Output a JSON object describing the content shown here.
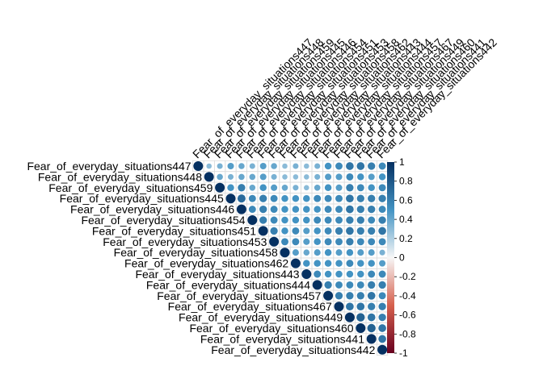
{
  "chart_data": {
    "type": "heatmap",
    "subtype": "correlation-circles-upper-triangle",
    "title": "",
    "variables": [
      "Fear_of_everyday_situations447",
      "Fear_of_everyday_situations448",
      "Fear_of_everyday_situations459",
      "Fear_of_everyday_situations445",
      "Fear_of_everyday_situations446",
      "Fear_of_everyday_situations454",
      "Fear_of_everyday_situations451",
      "Fear_of_everyday_situations453",
      "Fear_of_everyday_situations458",
      "Fear_of_everyday_situations462",
      "Fear_of_everyday_situations443",
      "Fear_of_everyday_situations444",
      "Fear_of_everyday_situations457",
      "Fear_of_everyday_situations467",
      "Fear_of_everyday_situations449",
      "Fear_of_everyday_situations460",
      "Fear_of_everyday_situations441",
      "Fear_of_everyday_situations442"
    ],
    "matrix": [
      [
        1.0,
        0.3,
        0.35,
        0.45,
        0.4,
        0.35,
        0.45,
        0.4,
        0.3,
        0.35,
        0.3,
        0.35,
        0.5,
        0.55,
        0.65,
        0.65,
        0.6,
        0.55
      ],
      [
        0.3,
        1.0,
        0.4,
        0.35,
        0.4,
        0.4,
        0.45,
        0.35,
        0.3,
        0.3,
        0.3,
        0.35,
        0.45,
        0.45,
        0.55,
        0.5,
        0.45,
        0.5
      ],
      [
        0.35,
        0.4,
        1.0,
        0.5,
        0.6,
        0.4,
        0.5,
        0.45,
        0.4,
        0.35,
        0.3,
        0.4,
        0.5,
        0.45,
        0.6,
        0.55,
        0.5,
        0.55
      ],
      [
        0.45,
        0.35,
        0.5,
        1.0,
        0.7,
        0.55,
        0.6,
        0.55,
        0.5,
        0.5,
        0.5,
        0.55,
        0.55,
        0.55,
        0.65,
        0.6,
        0.6,
        0.6
      ],
      [
        0.4,
        0.4,
        0.6,
        0.7,
        1.0,
        0.55,
        0.6,
        0.55,
        0.5,
        0.5,
        0.5,
        0.5,
        0.55,
        0.55,
        0.65,
        0.6,
        0.6,
        0.55
      ],
      [
        0.35,
        0.4,
        0.4,
        0.55,
        0.55,
        1.0,
        0.6,
        0.55,
        0.5,
        0.5,
        0.5,
        0.55,
        0.55,
        0.55,
        0.6,
        0.6,
        0.55,
        0.6
      ],
      [
        0.45,
        0.45,
        0.5,
        0.6,
        0.6,
        0.6,
        1.0,
        0.6,
        0.5,
        0.55,
        0.45,
        0.5,
        0.55,
        0.6,
        0.65,
        0.6,
        0.6,
        0.65
      ],
      [
        0.4,
        0.35,
        0.45,
        0.55,
        0.55,
        0.55,
        0.6,
        1.0,
        0.55,
        0.55,
        0.45,
        0.5,
        0.55,
        0.55,
        0.6,
        0.55,
        0.55,
        0.55
      ],
      [
        0.3,
        0.3,
        0.4,
        0.5,
        0.5,
        0.5,
        0.5,
        0.55,
        1.0,
        0.45,
        0.4,
        0.45,
        0.5,
        0.45,
        0.5,
        0.45,
        0.45,
        0.35
      ],
      [
        0.35,
        0.3,
        0.35,
        0.5,
        0.5,
        0.5,
        0.55,
        0.55,
        0.45,
        1.0,
        0.5,
        0.5,
        0.5,
        0.5,
        0.55,
        0.5,
        0.5,
        0.45
      ],
      [
        0.3,
        0.3,
        0.3,
        0.5,
        0.5,
        0.5,
        0.45,
        0.45,
        0.4,
        0.5,
        1.0,
        0.55,
        0.5,
        0.5,
        0.5,
        0.5,
        0.55,
        0.55
      ],
      [
        0.35,
        0.35,
        0.4,
        0.55,
        0.5,
        0.55,
        0.5,
        0.5,
        0.45,
        0.5,
        0.55,
        1.0,
        0.6,
        0.55,
        0.55,
        0.55,
        0.6,
        0.6
      ],
      [
        0.5,
        0.45,
        0.5,
        0.55,
        0.55,
        0.55,
        0.55,
        0.55,
        0.5,
        0.5,
        0.5,
        0.6,
        1.0,
        0.6,
        0.6,
        0.6,
        0.65,
        0.55
      ],
      [
        0.55,
        0.45,
        0.45,
        0.55,
        0.55,
        0.55,
        0.6,
        0.55,
        0.45,
        0.5,
        0.5,
        0.55,
        0.6,
        1.0,
        0.65,
        0.65,
        0.6,
        0.6
      ],
      [
        0.65,
        0.55,
        0.6,
        0.65,
        0.65,
        0.6,
        0.65,
        0.6,
        0.5,
        0.55,
        0.5,
        0.55,
        0.6,
        0.65,
        1.0,
        0.75,
        0.65,
        0.6
      ],
      [
        0.65,
        0.5,
        0.55,
        0.6,
        0.6,
        0.6,
        0.6,
        0.55,
        0.45,
        0.5,
        0.5,
        0.55,
        0.6,
        0.65,
        0.75,
        1.0,
        0.75,
        0.65
      ],
      [
        0.6,
        0.45,
        0.5,
        0.6,
        0.6,
        0.55,
        0.6,
        0.55,
        0.45,
        0.5,
        0.55,
        0.6,
        0.65,
        0.6,
        0.65,
        0.75,
        1.0,
        0.65
      ],
      [
        0.55,
        0.5,
        0.55,
        0.6,
        0.55,
        0.6,
        0.65,
        0.55,
        0.35,
        0.45,
        0.55,
        0.6,
        0.55,
        0.6,
        0.6,
        0.65,
        0.65,
        1.0
      ]
    ],
    "legend": {
      "placement": "right",
      "range": [
        -1,
        1
      ],
      "ticks": [
        "1",
        "0.8",
        "0.6",
        "0.4",
        "0.2",
        "0",
        "-0.2",
        "-0.4",
        "-0.6",
        "-0.8",
        "-1"
      ],
      "colors": {
        "neg1": "#67001f",
        "neg05": "#d6604d",
        "zero": "#f7f7f7",
        "pos05": "#4393c3",
        "pos1": "#053061"
      }
    },
    "grid": true,
    "xlabel": "",
    "ylabel": ""
  }
}
